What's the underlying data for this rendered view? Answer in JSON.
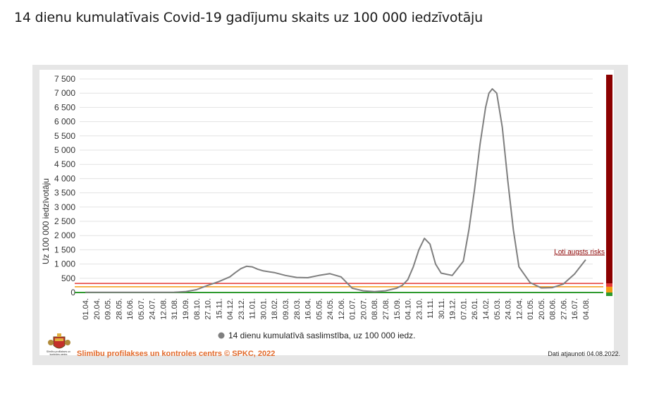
{
  "page": {
    "title": "14 dienu kumulatīvais Covid-19 gadījumu skaits uz 100 000 iedzīvotāju"
  },
  "footer": {
    "organization": "Slimību profilakses un kontroles centrs © SPKC, 2022",
    "updated": "Dati atjaunoti 04.08.2022.",
    "logo_caption": "Slimību profilakses un kontroles centrs"
  },
  "colors": {
    "series": "#7f7f7f",
    "high_risk": "#8b0000",
    "risk_red": "#e53935",
    "risk_orange": "#f39c12",
    "risk_green": "#2e9a2e",
    "footer_text": "#e2692a"
  },
  "chart_data": {
    "type": "line",
    "ylabel": "Uz 100 000 iedzīvotāju",
    "ylim": [
      0,
      7500
    ],
    "yticks": [
      0,
      500,
      1000,
      1500,
      2000,
      2500,
      3000,
      3500,
      4000,
      4500,
      5000,
      5500,
      6000,
      6500,
      7000,
      7500
    ],
    "ytick_labels": [
      "0",
      "500",
      "1 000",
      "1 500",
      "2 000",
      "2 500",
      "3 000",
      "3 500",
      "4 000",
      "4 500",
      "5 000",
      "5 500",
      "6 000",
      "6 500",
      "7 000",
      "7 500"
    ],
    "xtick_labels": [
      "01.04.",
      "20.04.",
      "09.05.",
      "28.05.",
      "16.06.",
      "05.07.",
      "24.07.",
      "12.08.",
      "31.08.",
      "19.09.",
      "08.10.",
      "27.10.",
      "15.11.",
      "04.12.",
      "23.12.",
      "11.01.",
      "30.01.",
      "18.02.",
      "09.03.",
      "28.03.",
      "16.04.",
      "05.05.",
      "24.05.",
      "12.06.",
      "01.07.",
      "20.07.",
      "08.08.",
      "27.08.",
      "15.09.",
      "04.10.",
      "23.10.",
      "11.11.",
      "30.11.",
      "19.12.",
      "07.01.",
      "26.01.",
      "14.02.",
      "05.03.",
      "24.03.",
      "12.04.",
      "01.05.",
      "20.05.",
      "08.06.",
      "27.06.",
      "16.07.",
      "04.08."
    ],
    "legend_position": "bottom",
    "grid": true,
    "series": [
      {
        "name": "14 dienu kumulatīvā saslimstība, uz 100 000 iedz.",
        "x_index": [
          0,
          1,
          2,
          3,
          4,
          5,
          6,
          7,
          8,
          9,
          10,
          11,
          12,
          13,
          13.5,
          14,
          14.5,
          15,
          15.5,
          16,
          17,
          18,
          19,
          20,
          21,
          22,
          23,
          24,
          25,
          26,
          27,
          28,
          28.5,
          29,
          29.5,
          30,
          30.5,
          31,
          31.5,
          32,
          33,
          34,
          34.5,
          35,
          35.5,
          36,
          36.3,
          36.6,
          37,
          37.5,
          38,
          38.5,
          39,
          40,
          41,
          42,
          43,
          44,
          45
        ],
        "values": [
          8,
          5,
          4,
          5,
          6,
          5,
          5,
          5,
          10,
          30,
          100,
          250,
          380,
          550,
          700,
          840,
          920,
          900,
          820,
          760,
          700,
          600,
          530,
          520,
          600,
          660,
          550,
          150,
          60,
          30,
          60,
          150,
          250,
          450,
          900,
          1500,
          1900,
          1700,
          1000,
          680,
          600,
          1100,
          2200,
          3600,
          5200,
          6500,
          7000,
          7150,
          7000,
          5800,
          3900,
          2200,
          900,
          350,
          160,
          170,
          300,
          650,
          1150
        ]
      }
    ],
    "annotations": [
      {
        "text": "Ļoti augsts risks",
        "value": 1450
      }
    ],
    "thresholds": [
      {
        "label": "red",
        "value": 320
      },
      {
        "label": "orange",
        "value": 200
      },
      {
        "label": "green",
        "value": 0
      }
    ]
  }
}
